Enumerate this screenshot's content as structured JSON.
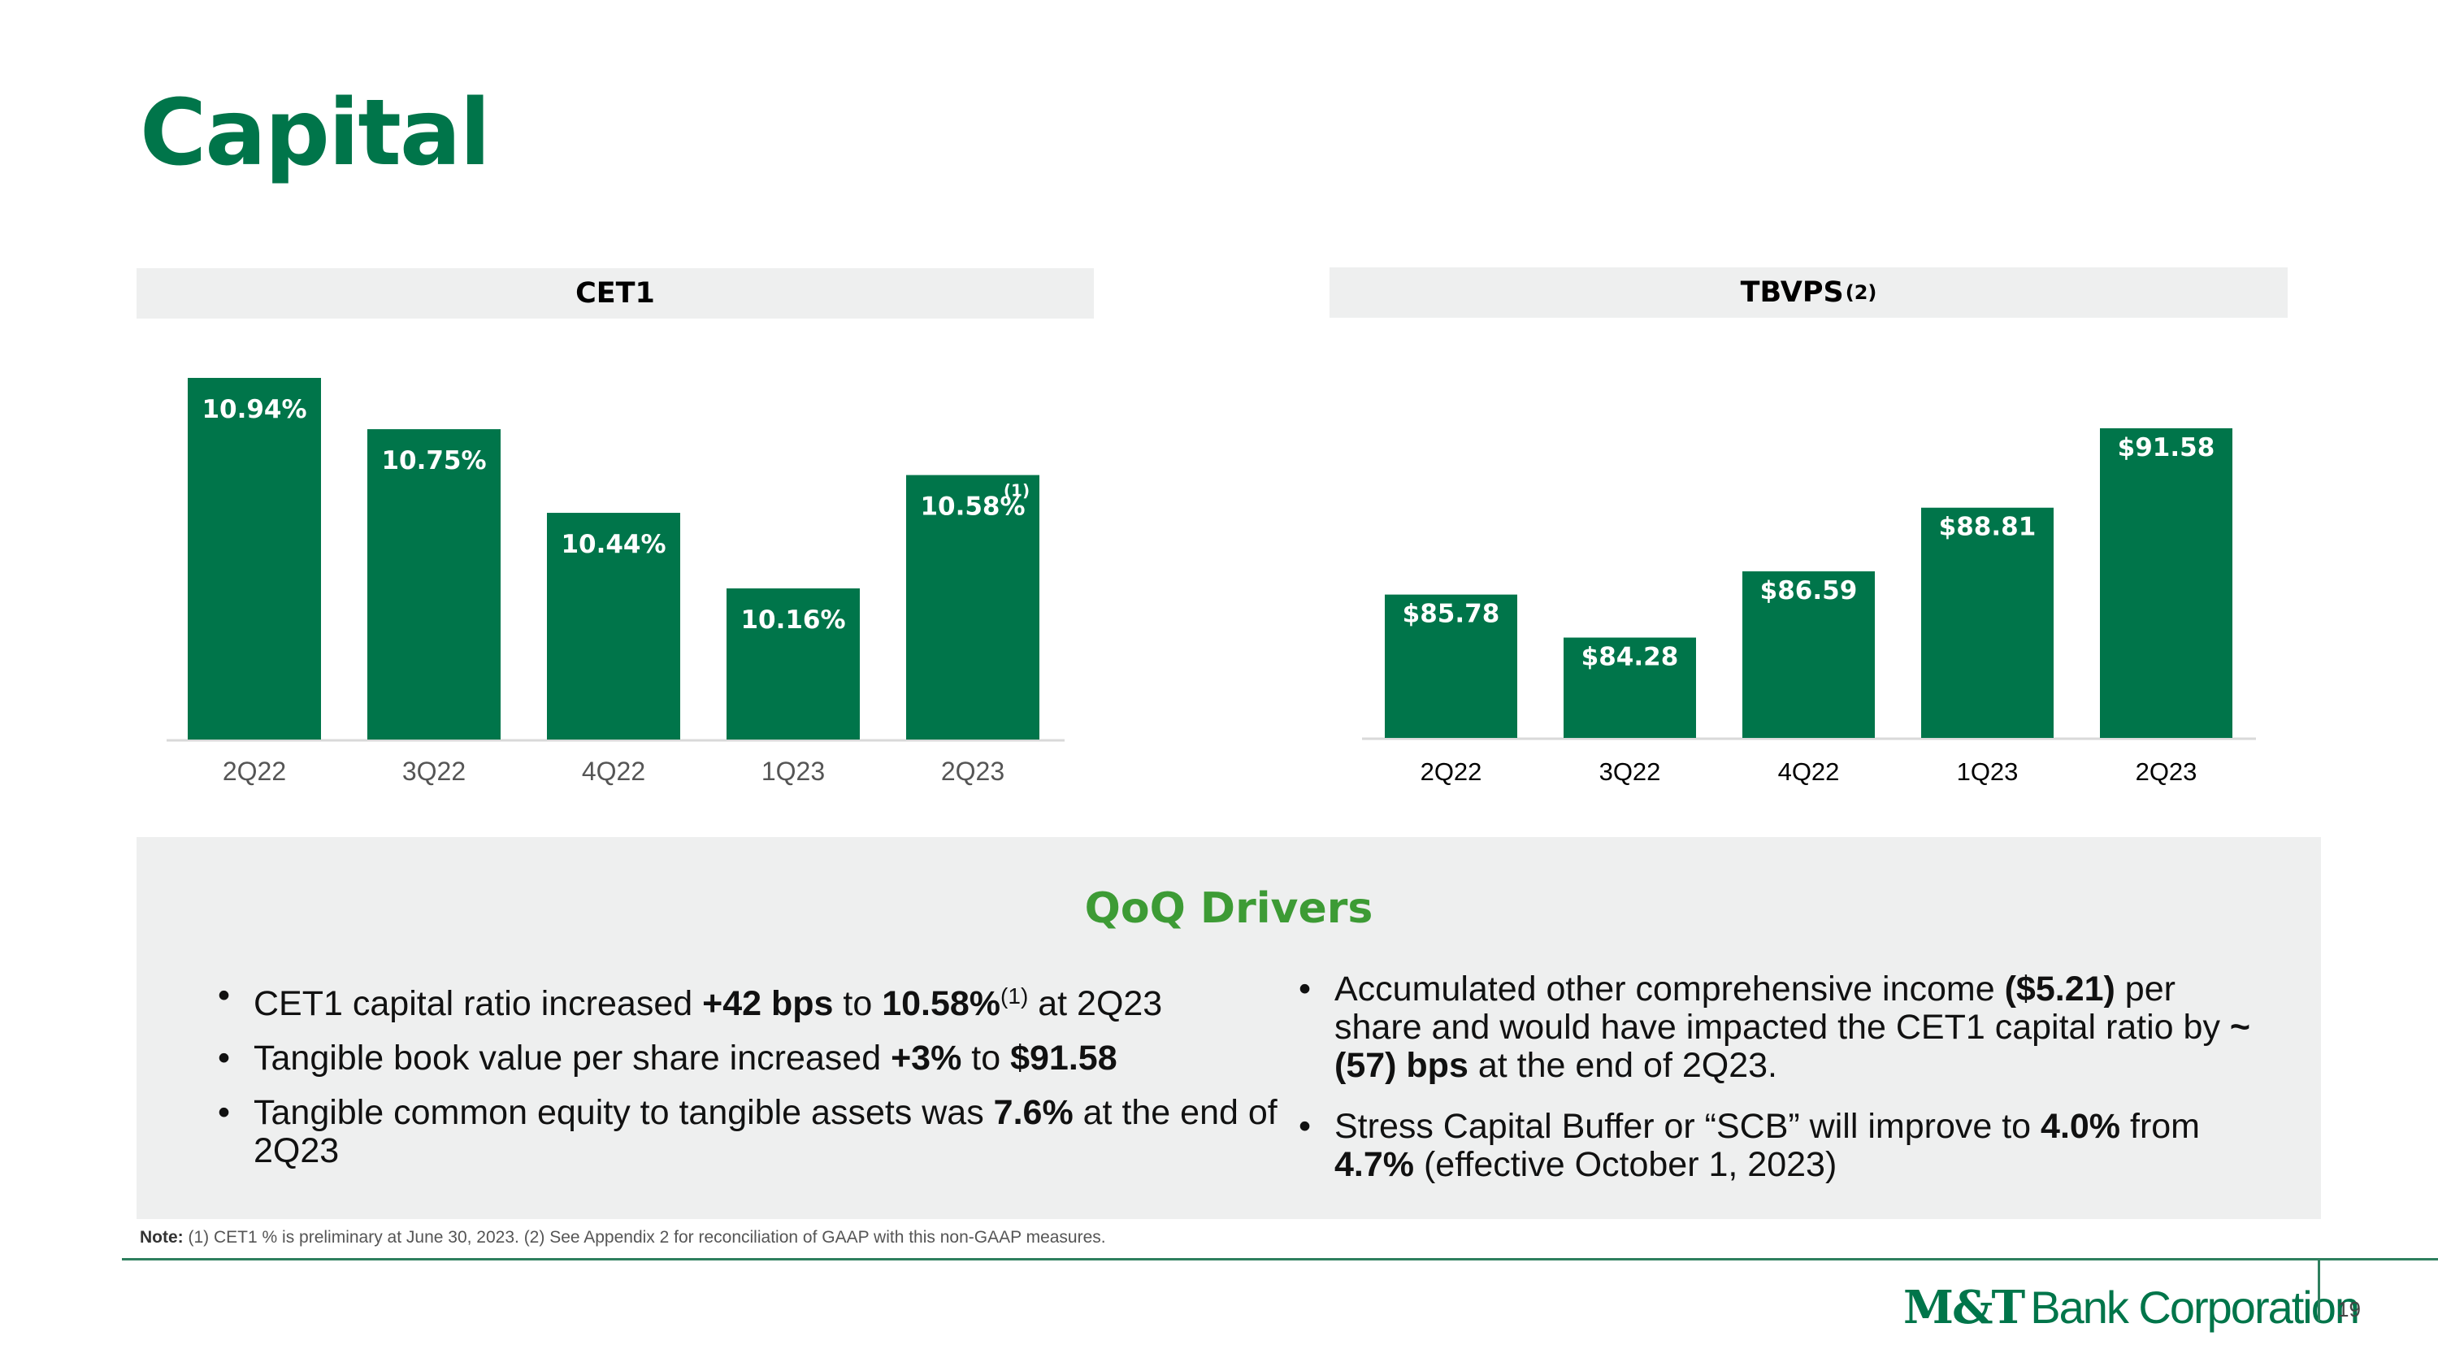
{
  "slide": {
    "title": "Capital",
    "page_number": "19"
  },
  "colors": {
    "bar": "#00754a",
    "title": "#00754a",
    "drivers_title": "#3d9b35",
    "panel_bg": "#eeefef"
  },
  "chart_data": [
    {
      "type": "bar",
      "title": "CET1",
      "categories": [
        "2Q22",
        "3Q22",
        "4Q22",
        "1Q23",
        "2Q23"
      ],
      "values": [
        10.94,
        10.75,
        10.44,
        10.16,
        10.58
      ],
      "value_labels": [
        "10.94%",
        "10.75%",
        "10.44%",
        "10.16%",
        "10.58%"
      ],
      "label_footnotes": [
        "",
        "",
        "",
        "",
        "(1)"
      ],
      "ylim": [
        9.6,
        10.94
      ],
      "xlabel": "",
      "ylabel": "",
      "grid": false
    },
    {
      "type": "bar",
      "title": "TBVPS",
      "title_footnote": "(2)",
      "categories": [
        "2Q22",
        "3Q22",
        "4Q22",
        "1Q23",
        "2Q23"
      ],
      "values": [
        85.78,
        84.28,
        86.59,
        88.81,
        91.58
      ],
      "value_labels": [
        "$85.78",
        "$84.28",
        "$86.59",
        "$88.81",
        "$91.58"
      ],
      "label_footnotes": [
        "",
        "",
        "",
        "",
        ""
      ],
      "ylim": [
        80.78,
        91.58
      ],
      "xlabel": "",
      "ylabel": "",
      "grid": false
    }
  ],
  "drivers": {
    "title": "QoQ Drivers",
    "left": [
      {
        "t1": "CET1 capital ratio increased ",
        "b1": "+42 bps",
        "t2": " to ",
        "b2": "10.58%",
        "sup": "(1)",
        "t3": " at 2Q23"
      },
      {
        "t1": "Tangible book value per share increased ",
        "b1": "+3%",
        "t2": " to ",
        "b2": "$91.58"
      },
      {
        "t1": "Tangible common equity to tangible assets was ",
        "b1": "7.6%",
        "t2": " at the end of 2Q23"
      }
    ],
    "right": [
      {
        "t1": "Accumulated other comprehensive income ",
        "b1": "($5.21)",
        "t2": " per share and would have impacted the CET1 capital ratio by ",
        "b2": "~(57) bps",
        "t3": " at the end of 2Q23."
      },
      {
        "t1": "Stress Capital Buffer or “SCB” will improve to ",
        "b1": "4.0%",
        "t2": " from ",
        "b2": "4.7%",
        "t3": " (effective October 1, 2023)"
      }
    ]
  },
  "footer": {
    "note_label": "Note:",
    "note_text": " (1) CET1 % is preliminary at June 30, 2023. (2) See Appendix 2 for reconciliation of GAAP with this non-GAAP measures.",
    "logo_mt": "M&T",
    "logo_rest": "Bank Corporation"
  }
}
